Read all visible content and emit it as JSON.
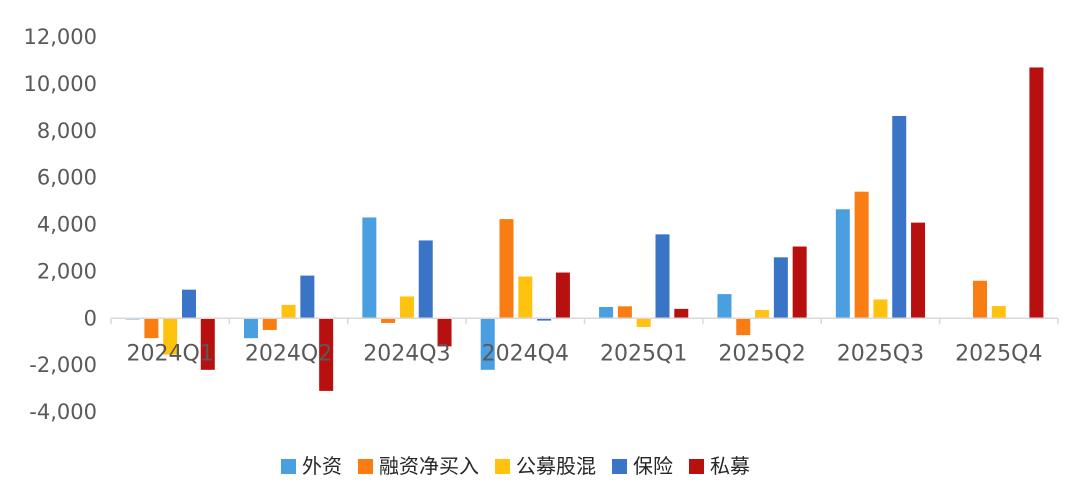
{
  "chart_data": {
    "type": "bar",
    "title": "",
    "xlabel": "",
    "ylabel": "",
    "ylim": [
      -4000,
      12000
    ],
    "yticks": [
      -4000,
      -2000,
      0,
      2000,
      4000,
      6000,
      8000,
      10000,
      12000
    ],
    "ytick_labels": [
      "-4,000",
      "-2,000",
      "0",
      "2,000",
      "4,000",
      "6,000",
      "8,000",
      "10,000",
      "12,000"
    ],
    "categories": [
      "2024Q1",
      "2024Q2",
      "2024Q3",
      "2024Q4",
      "2025Q1",
      "2025Q2",
      "2025Q3",
      "2025Q4"
    ],
    "grid": false,
    "legend_position": "bottom",
    "series": [
      {
        "name": "外资",
        "color": "#4a9fe0",
        "values": [
          -50,
          -850,
          4300,
          -2200,
          480,
          1030,
          4650,
          0
        ]
      },
      {
        "name": "融资净买入",
        "color": "#fa7d14",
        "values": [
          -850,
          -500,
          -200,
          4230,
          510,
          -720,
          5400,
          1600
        ]
      },
      {
        "name": "公募股混",
        "color": "#ffc20f",
        "values": [
          -1550,
          570,
          930,
          1780,
          -370,
          350,
          800,
          520
        ]
      },
      {
        "name": "保险",
        "color": "#3a74c6",
        "values": [
          1220,
          1820,
          3320,
          -100,
          3580,
          2600,
          8630,
          0
        ]
      },
      {
        "name": "私募",
        "color": "#b80f0f",
        "values": [
          -2200,
          -3100,
          -1200,
          1950,
          400,
          3060,
          4080,
          10700
        ]
      }
    ]
  }
}
